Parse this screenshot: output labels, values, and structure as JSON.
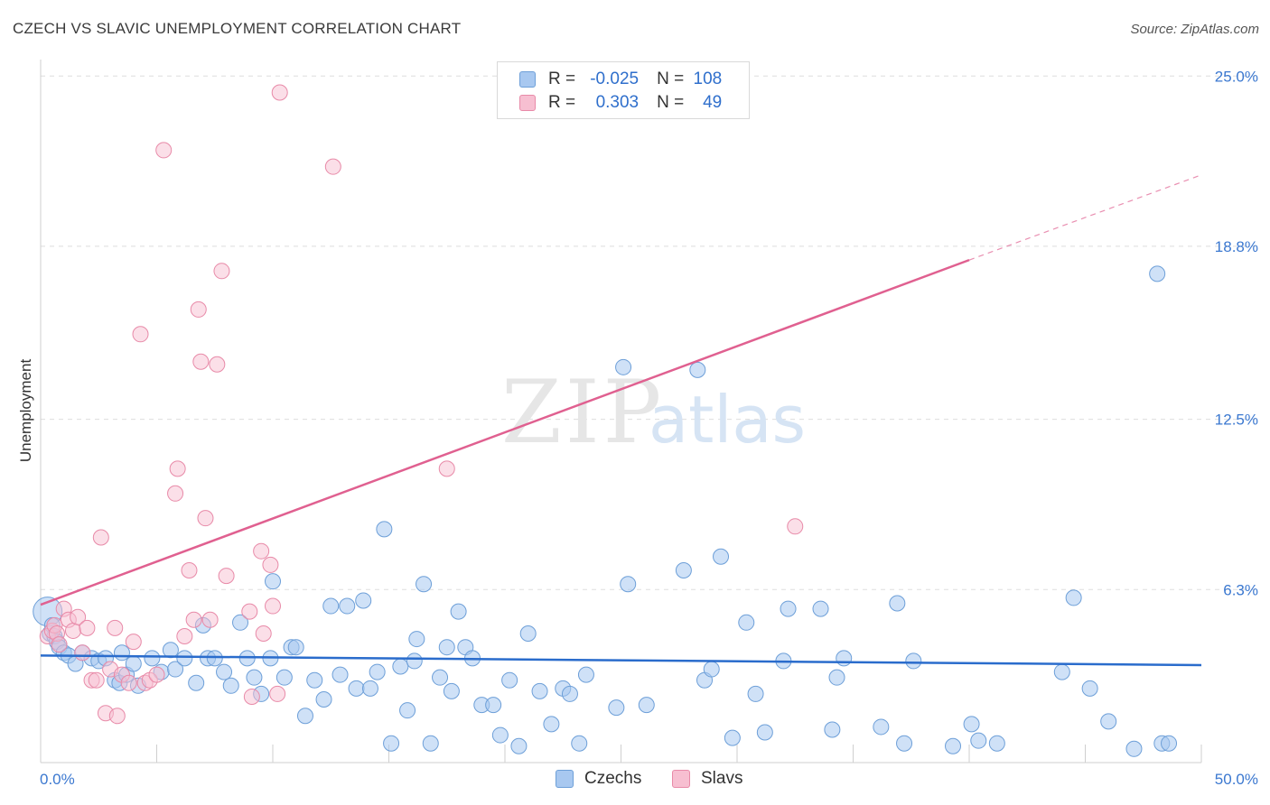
{
  "title": "CZECH VS SLAVIC UNEMPLOYMENT CORRELATION CHART",
  "source": "Source: ZipAtlas.com",
  "watermark": {
    "zip": "ZIP",
    "atlas": "atlas"
  },
  "colors": {
    "czech_fill": "#a8c8f0",
    "czech_stroke": "#6d9fd8",
    "czech_line": "#2a6ccc",
    "slav_fill": "#f7bfd1",
    "slav_stroke": "#e88aa8",
    "slav_line": "#e06090",
    "grid": "#dddddd",
    "tick_label": "#3b78d0"
  },
  "legend": {
    "rows": [
      {
        "r_label": "R =",
        "r_value": "-0.025",
        "n_label": "N =",
        "n_value": "108"
      },
      {
        "r_label": "R =",
        "r_value": "0.303",
        "n_label": "N =",
        "n_value": "49"
      }
    ]
  },
  "bottom_legend": {
    "czechs": "Czechs",
    "slavs": "Slavs"
  },
  "chart_data": {
    "type": "scatter",
    "title": "CZECH VS SLAVIC UNEMPLOYMENT CORRELATION CHART",
    "xlabel": "",
    "ylabel": "Unemployment",
    "xlim": [
      0,
      50
    ],
    "ylim": [
      0,
      25.6
    ],
    "x_tick_labels": [
      "0.0%",
      "50.0%"
    ],
    "y_ticks": [
      6.3,
      12.5,
      18.8,
      25.0
    ],
    "y_tick_labels": [
      "6.3%",
      "12.5%",
      "18.8%",
      "25.0%"
    ],
    "grid": true,
    "series": [
      {
        "name": "Czechs",
        "r": -0.025,
        "n": 108,
        "trend": {
          "x0": 0,
          "y0": 3.9,
          "x1": 50,
          "y1": 3.55
        },
        "points": [
          [
            0.3,
            5.5
          ],
          [
            0.4,
            4.7
          ],
          [
            0.5,
            5.0
          ],
          [
            0.6,
            4.6
          ],
          [
            0.7,
            4.4
          ],
          [
            0.8,
            4.2
          ],
          [
            1.0,
            4.0
          ],
          [
            1.2,
            3.9
          ],
          [
            1.5,
            3.6
          ],
          [
            1.8,
            4.0
          ],
          [
            2.2,
            3.8
          ],
          [
            2.5,
            3.7
          ],
          [
            2.8,
            3.8
          ],
          [
            3.2,
            3.0
          ],
          [
            3.4,
            2.9
          ],
          [
            3.5,
            4.0
          ],
          [
            3.7,
            3.2
          ],
          [
            4.0,
            3.6
          ],
          [
            4.2,
            2.8
          ],
          [
            4.8,
            3.8
          ],
          [
            5.2,
            3.3
          ],
          [
            5.6,
            4.1
          ],
          [
            5.8,
            3.4
          ],
          [
            6.2,
            3.8
          ],
          [
            6.7,
            2.9
          ],
          [
            7.0,
            5.0
          ],
          [
            7.2,
            3.8
          ],
          [
            7.5,
            3.8
          ],
          [
            7.9,
            3.3
          ],
          [
            8.2,
            2.8
          ],
          [
            8.6,
            5.1
          ],
          [
            8.9,
            3.8
          ],
          [
            9.2,
            3.1
          ],
          [
            9.5,
            2.5
          ],
          [
            9.9,
            3.8
          ],
          [
            10.0,
            6.6
          ],
          [
            10.5,
            3.1
          ],
          [
            10.8,
            4.2
          ],
          [
            11.0,
            4.2
          ],
          [
            11.4,
            1.7
          ],
          [
            11.8,
            3.0
          ],
          [
            12.2,
            2.3
          ],
          [
            12.5,
            5.7
          ],
          [
            12.9,
            3.2
          ],
          [
            13.2,
            5.7
          ],
          [
            13.6,
            2.7
          ],
          [
            13.9,
            5.9
          ],
          [
            14.2,
            2.7
          ],
          [
            14.5,
            3.3
          ],
          [
            14.8,
            8.5
          ],
          [
            15.1,
            0.7
          ],
          [
            15.5,
            3.5
          ],
          [
            15.8,
            1.9
          ],
          [
            16.1,
            3.7
          ],
          [
            16.2,
            4.5
          ],
          [
            16.5,
            6.5
          ],
          [
            16.8,
            0.7
          ],
          [
            17.2,
            3.1
          ],
          [
            17.5,
            4.2
          ],
          [
            17.7,
            2.6
          ],
          [
            18.0,
            5.5
          ],
          [
            18.3,
            4.2
          ],
          [
            18.6,
            3.8
          ],
          [
            19.0,
            2.1
          ],
          [
            19.5,
            2.1
          ],
          [
            19.8,
            1.0
          ],
          [
            20.2,
            3.0
          ],
          [
            20.6,
            0.6
          ],
          [
            21.0,
            4.7
          ],
          [
            21.5,
            2.6
          ],
          [
            22.0,
            1.4
          ],
          [
            22.5,
            2.7
          ],
          [
            22.8,
            2.5
          ],
          [
            23.2,
            0.7
          ],
          [
            23.5,
            3.2
          ],
          [
            24.8,
            2.0
          ],
          [
            25.1,
            14.4
          ],
          [
            25.3,
            6.5
          ],
          [
            26.1,
            2.1
          ],
          [
            27.7,
            7.0
          ],
          [
            28.3,
            14.3
          ],
          [
            28.6,
            3.0
          ],
          [
            28.9,
            3.4
          ],
          [
            29.3,
            7.5
          ],
          [
            29.8,
            0.9
          ],
          [
            30.4,
            5.1
          ],
          [
            30.8,
            2.5
          ],
          [
            31.2,
            1.1
          ],
          [
            32.0,
            3.7
          ],
          [
            32.2,
            5.6
          ],
          [
            33.6,
            5.6
          ],
          [
            34.1,
            1.2
          ],
          [
            34.3,
            3.1
          ],
          [
            34.6,
            3.8
          ],
          [
            36.2,
            1.3
          ],
          [
            36.9,
            5.8
          ],
          [
            37.2,
            0.7
          ],
          [
            37.6,
            3.7
          ],
          [
            39.3,
            0.6
          ],
          [
            40.1,
            1.4
          ],
          [
            40.4,
            0.8
          ],
          [
            41.2,
            0.7
          ],
          [
            44.0,
            3.3
          ],
          [
            44.5,
            6.0
          ],
          [
            45.2,
            2.7
          ],
          [
            46.0,
            1.5
          ],
          [
            47.1,
            0.5
          ],
          [
            48.1,
            17.8
          ],
          [
            48.3,
            0.7
          ],
          [
            48.6,
            0.7
          ]
        ]
      },
      {
        "name": "Slavs",
        "r": 0.303,
        "n": 49,
        "trend": {
          "x0": 0,
          "y0": 5.75,
          "x1": 40,
          "y1": 18.3,
          "dashed_to": {
            "x": 50,
            "y": 21.4
          }
        },
        "points": [
          [
            0.3,
            4.6
          ],
          [
            0.5,
            4.8
          ],
          [
            0.6,
            5.0
          ],
          [
            0.7,
            4.7
          ],
          [
            0.8,
            4.3
          ],
          [
            1.0,
            5.6
          ],
          [
            1.2,
            5.2
          ],
          [
            1.4,
            4.8
          ],
          [
            1.6,
            5.3
          ],
          [
            1.8,
            4.0
          ],
          [
            2.0,
            4.9
          ],
          [
            2.2,
            3.0
          ],
          [
            2.4,
            3.0
          ],
          [
            2.6,
            8.2
          ],
          [
            2.8,
            1.8
          ],
          [
            3.0,
            3.4
          ],
          [
            3.2,
            4.9
          ],
          [
            3.3,
            1.7
          ],
          [
            3.5,
            3.2
          ],
          [
            3.8,
            2.9
          ],
          [
            4.0,
            4.4
          ],
          [
            4.3,
            15.6
          ],
          [
            4.5,
            2.9
          ],
          [
            4.7,
            3.0
          ],
          [
            5.0,
            3.2
          ],
          [
            5.3,
            22.3
          ],
          [
            5.8,
            9.8
          ],
          [
            5.9,
            10.7
          ],
          [
            6.2,
            4.6
          ],
          [
            6.4,
            7.0
          ],
          [
            6.6,
            5.2
          ],
          [
            6.8,
            16.5
          ],
          [
            6.9,
            14.6
          ],
          [
            7.1,
            8.9
          ],
          [
            7.3,
            5.2
          ],
          [
            7.6,
            14.5
          ],
          [
            7.8,
            17.9
          ],
          [
            8.0,
            6.8
          ],
          [
            9.1,
            2.4
          ],
          [
            9.5,
            7.7
          ],
          [
            9.6,
            4.7
          ],
          [
            9.9,
            7.2
          ],
          [
            10.0,
            5.7
          ],
          [
            10.2,
            2.5
          ],
          [
            10.3,
            24.4
          ],
          [
            12.6,
            21.7
          ],
          [
            17.5,
            10.7
          ],
          [
            32.5,
            8.6
          ],
          [
            9.0,
            5.5
          ]
        ]
      }
    ]
  }
}
